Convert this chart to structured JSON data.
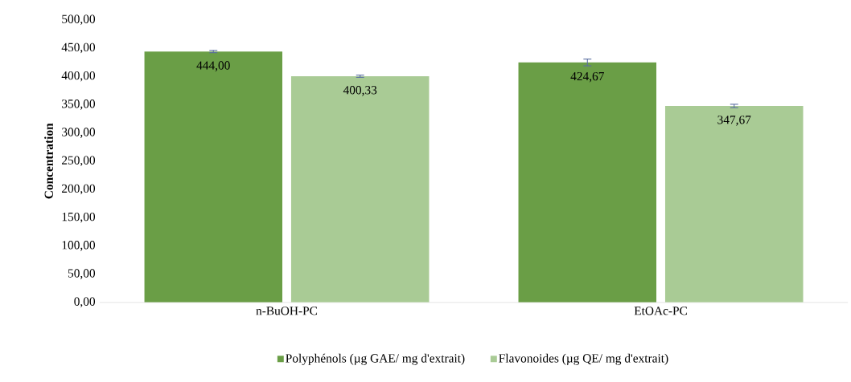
{
  "chart_data": {
    "type": "bar",
    "ylabel": "Concentration",
    "categories": [
      "n-BuOH-PC",
      "EtOAc-PC"
    ],
    "series": [
      {
        "name": "Polyphénols (µg GAE/ mg d'extrait)",
        "color": "#6a9e46",
        "values": [
          444.0,
          424.67
        ],
        "errors": [
          2,
          6
        ],
        "value_labels": [
          "444,00",
          "424,67"
        ]
      },
      {
        "name": "Flavonoides (µg QE/ mg d'extrait)",
        "color": "#a9cb95",
        "values": [
          400.33,
          347.67
        ],
        "errors": [
          2,
          3
        ],
        "value_labels": [
          "400,33",
          "347,67"
        ]
      }
    ],
    "ylim": [
      0,
      500
    ],
    "yticks": [
      {
        "value": 0,
        "label": "0,00"
      },
      {
        "value": 50,
        "label": "50,00"
      },
      {
        "value": 100,
        "label": "100,00"
      },
      {
        "value": 150,
        "label": "150,00"
      },
      {
        "value": 200,
        "label": "200,00"
      },
      {
        "value": 250,
        "label": "250,00"
      },
      {
        "value": 300,
        "label": "300,00"
      },
      {
        "value": 350,
        "label": "350,00"
      },
      {
        "value": 400,
        "label": "400,00"
      },
      {
        "value": 450,
        "label": "450,00"
      },
      {
        "value": 500,
        "label": "500,00"
      }
    ],
    "grid": false,
    "legend": "bottom"
  }
}
